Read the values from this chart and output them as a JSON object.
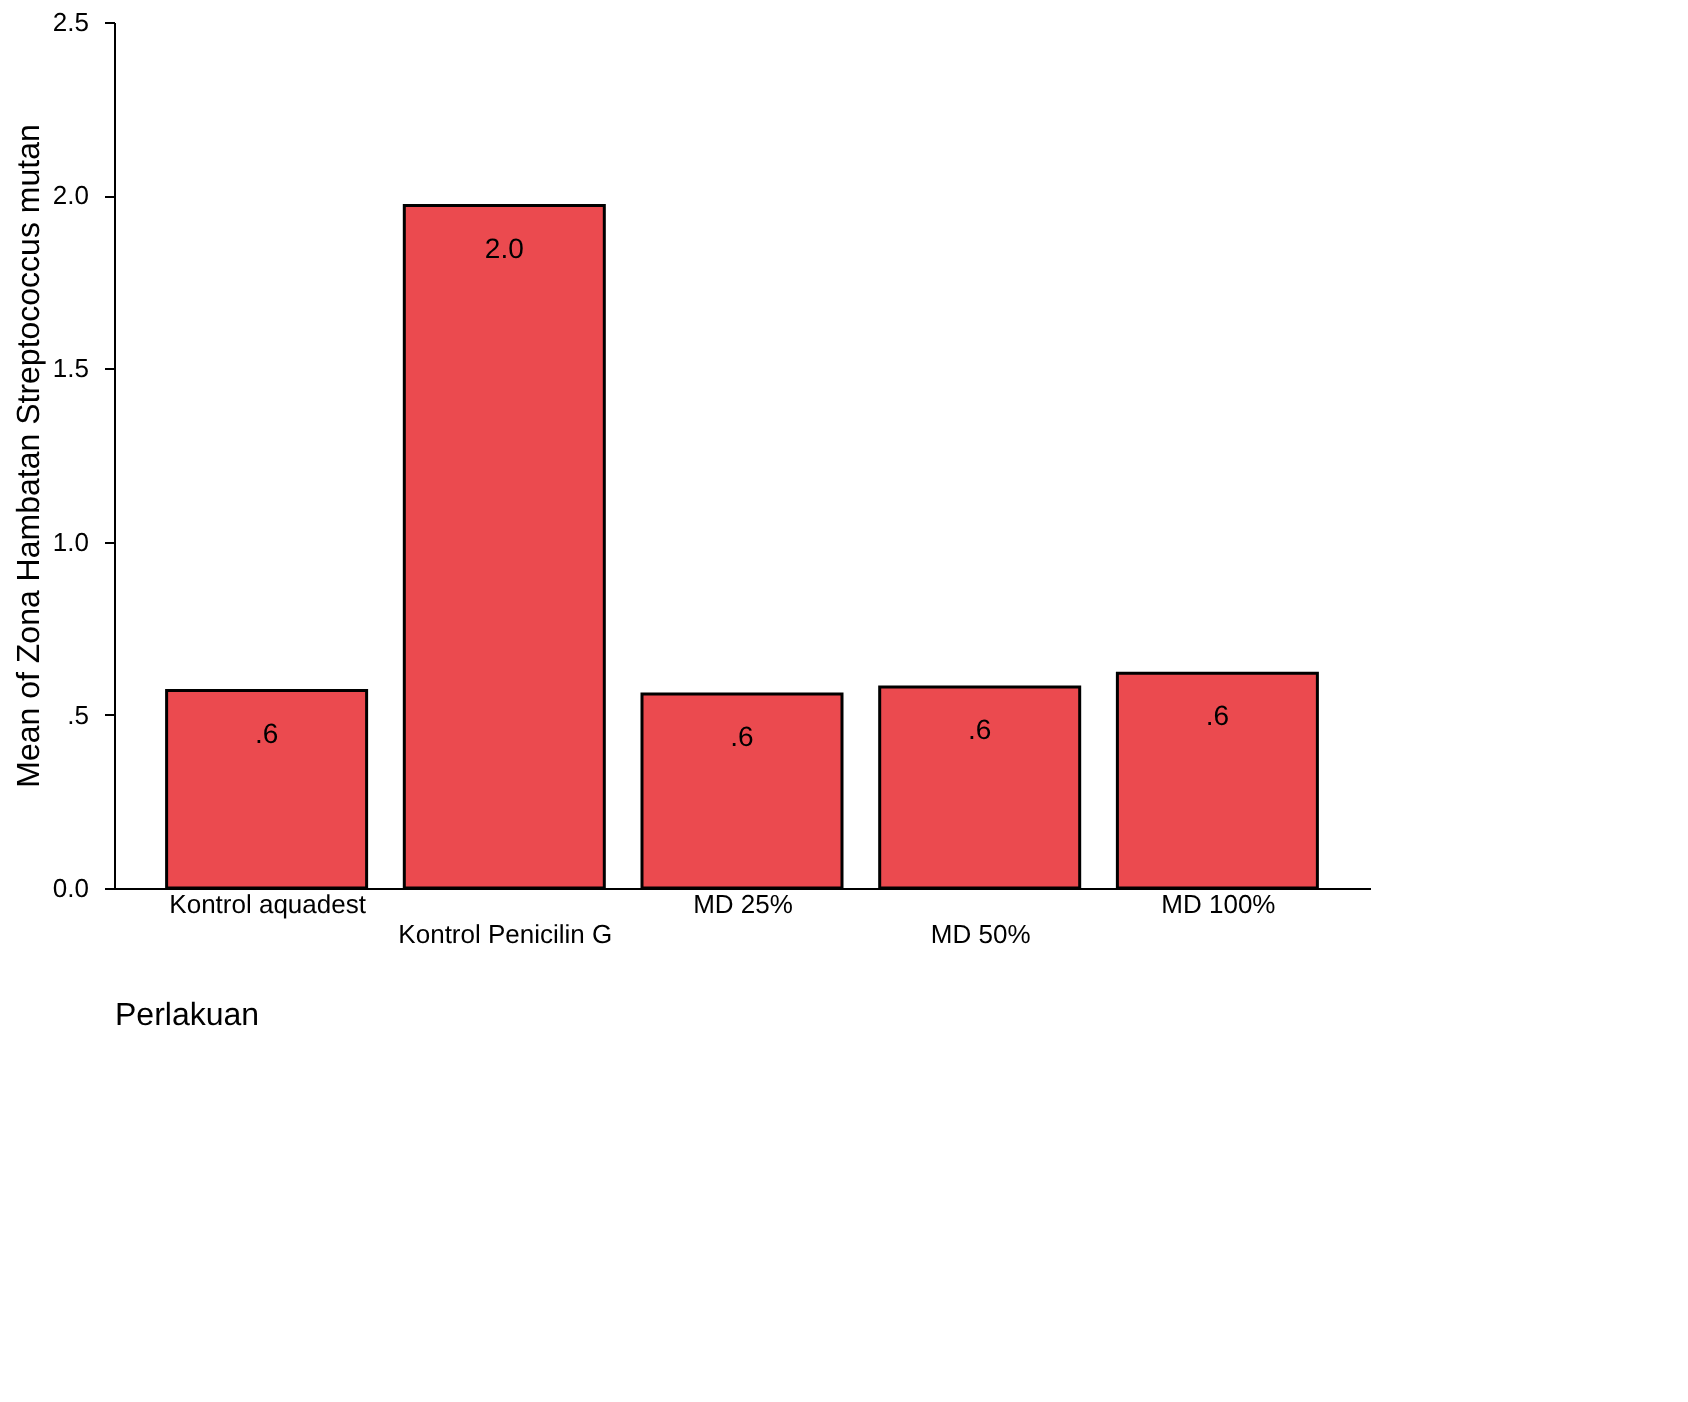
{
  "chart_data": {
    "type": "bar",
    "xlabel": "Perlakuan",
    "ylabel": "Mean of Zona Hambatan Streptococcus mutan",
    "categories": [
      "Kontrol aquadest",
      "Kontrol Penicilin G",
      "MD 25%",
      "MD 50%",
      "MD 100%"
    ],
    "values": [
      0.57,
      1.97,
      0.56,
      0.58,
      0.62
    ],
    "value_labels": [
      ".6",
      "2.0",
      ".6",
      ".6",
      ".6"
    ],
    "color": "#eb4a4f",
    "ylim": [
      0,
      2.5
    ],
    "yticks": [
      {
        "value": 0,
        "label": "0.0"
      },
      {
        "value": 0.5,
        "label": ".5"
      },
      {
        "value": 1.0,
        "label": "1.0"
      },
      {
        "value": 1.5,
        "label": "1.5"
      },
      {
        "value": 2.0,
        "label": "2.0"
      },
      {
        "value": 2.5,
        "label": "2.5"
      }
    ],
    "grid": false
  }
}
